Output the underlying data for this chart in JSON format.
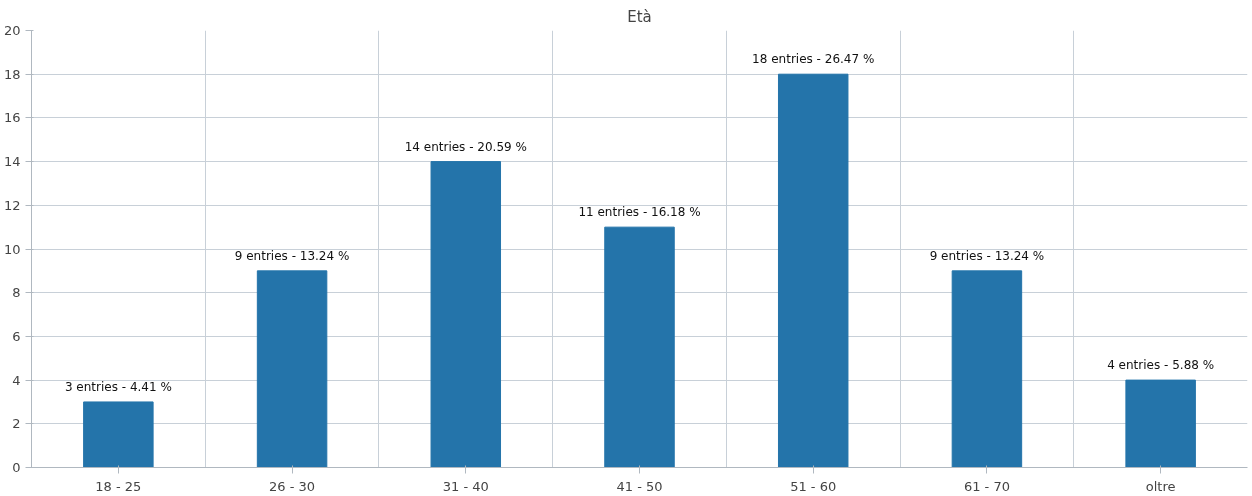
{
  "chart_data": {
    "type": "bar",
    "title": "Età",
    "categories": [
      "18 - 25",
      "26 - 30",
      "31 - 40",
      "41 - 50",
      "51 - 60",
      "61 - 70",
      "oltre"
    ],
    "values": [
      3,
      9,
      14,
      11,
      18,
      9,
      4
    ],
    "value_labels": [
      "3 entries - 4.41 %",
      "9 entries - 13.24 %",
      "14 entries - 20.59 %",
      "11 entries - 16.18 %",
      "18 entries - 26.47 %",
      "9 entries - 13.24 %",
      "4 entries - 5.88 %"
    ],
    "color": "#2474aa",
    "ylim": [
      0,
      20
    ],
    "yticks": [
      0,
      2,
      4,
      6,
      8,
      10,
      12,
      14,
      16,
      18,
      20
    ],
    "grid": true
  }
}
